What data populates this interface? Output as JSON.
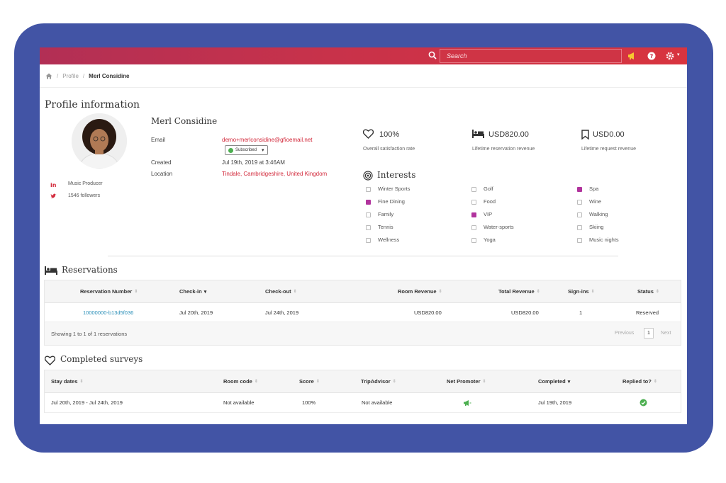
{
  "topbar": {
    "search_placeholder": "Search",
    "icons": [
      "search-icon",
      "megaphone-icon",
      "help-icon",
      "gear-icon"
    ]
  },
  "breadcrumb": {
    "home_icon": "home-icon",
    "items": [
      "Profile",
      "Merl Considine"
    ]
  },
  "profile": {
    "section_title": "Profile information",
    "name": "Merl Considine",
    "fields": {
      "email_label": "Email",
      "email_value": "demo+merlconsidine@gfioemail.net",
      "subscription": "Subscribed",
      "created_label": "Created",
      "created_value": "Jul 19th, 2019 at 3:46AM",
      "location_label": "Location",
      "location_value": "Tindale, Cambridgeshire, United Kingdom"
    },
    "social": {
      "linkedin": "Music Producer",
      "twitter": "1546 followers"
    }
  },
  "stats": [
    {
      "icon": "heart-icon",
      "value": "100%",
      "label": "Overall satisfaction rate"
    },
    {
      "icon": "bed-icon",
      "value": "USD820.00",
      "label": "Lifetime reservation revenue"
    },
    {
      "icon": "bookmark-icon",
      "value": "USD0.00",
      "label": "Lifetime request revenue"
    }
  ],
  "interests": {
    "title": "Interests",
    "columns": [
      [
        {
          "label": "Winter Sports",
          "checked": false
        },
        {
          "label": "Fine Dining",
          "checked": true
        },
        {
          "label": "Family",
          "checked": false
        },
        {
          "label": "Tennis",
          "checked": false
        },
        {
          "label": "Wellness",
          "checked": false
        }
      ],
      [
        {
          "label": "Golf",
          "checked": false
        },
        {
          "label": "Food",
          "checked": false
        },
        {
          "label": "VIP",
          "checked": true
        },
        {
          "label": "Water-sports",
          "checked": false
        },
        {
          "label": "Yoga",
          "checked": false
        }
      ],
      [
        {
          "label": "Spa",
          "checked": true
        },
        {
          "label": "Wine",
          "checked": false
        },
        {
          "label": "Walking",
          "checked": false
        },
        {
          "label": "Skiing",
          "checked": false
        },
        {
          "label": "Music nights",
          "checked": false
        }
      ]
    ]
  },
  "reservations": {
    "title": "Reservations",
    "headers": [
      "Reservation Number",
      "Check-in",
      "Check-out",
      "Room Revenue",
      "Total Revenue",
      "Sign-ins",
      "Status"
    ],
    "rows": [
      [
        "10000000-b13d5f036",
        "Jul 20th, 2019",
        "Jul 24th, 2019",
        "USD820.00",
        "USD820.00",
        "1",
        "Reserved"
      ]
    ],
    "footer": "Showing 1 to 1 of 1 reservations",
    "pagination": {
      "previous": "Previous",
      "current": "1",
      "next": "Next"
    }
  },
  "surveys": {
    "title": "Completed surveys",
    "headers": [
      "Stay dates",
      "Room code",
      "Score",
      "TripAdvisor",
      "Net Promoter",
      "Completed",
      "Replied to?"
    ],
    "rows": [
      [
        "Jul 20th, 2019 - Jul 24th, 2019",
        "Not available",
        "100%",
        "Not available",
        "",
        "Jul 19th, 2019",
        ""
      ]
    ]
  },
  "colors": {
    "frame": "#4254a5",
    "topbar": "#c8324a",
    "accent_red": "#d2283a",
    "link": "#2a8fb8",
    "checkbox_on": "#b1339d",
    "success": "#4caf50"
  }
}
